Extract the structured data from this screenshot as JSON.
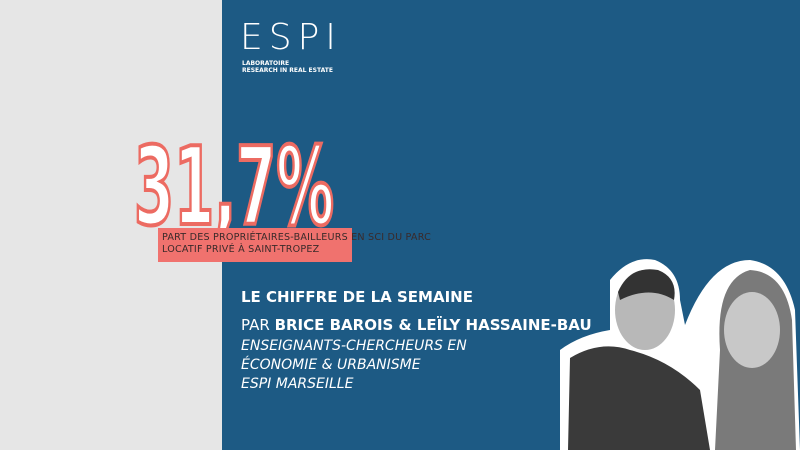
{
  "logo": {
    "name": "ESPI",
    "line1": "LABORATOIRE",
    "line2": "RESEARCH IN REAL ESTATE"
  },
  "figure": {
    "value": "31,7%",
    "caption_line1": "PART DES PROPRIÉTAIRES-BAILLEURS EN SCI DU PARC",
    "caption_line2": "LOCATIF PRIVÉ À SAINT-TROPEZ"
  },
  "heading": "LE CHIFFRE DE LA SEMAINE",
  "authors": {
    "byline_prefix": "PAR",
    "names": "BRICE BAROIS & LEÏLY HASSAINE-BAU",
    "role_line1": "ENSEIGNANTS-CHERCHEURS EN",
    "role_line2": "ÉCONOMIE & URBANISME",
    "role_line3": "ESPI MARSEILLE"
  }
}
